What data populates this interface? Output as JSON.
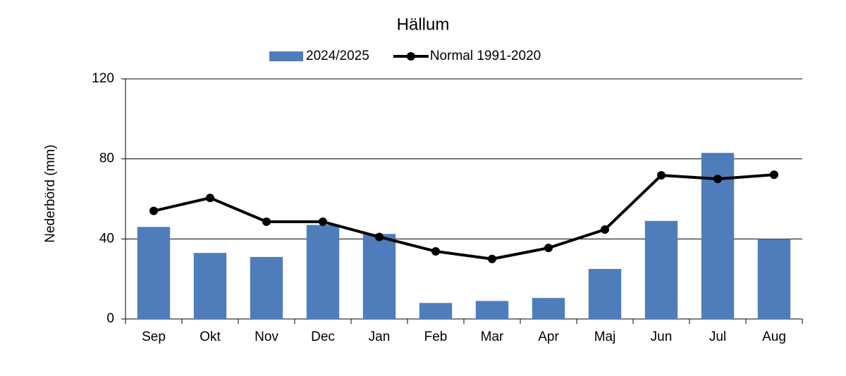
{
  "chart_data": {
    "type": "bar",
    "title": "Hällum",
    "y_label": "Nederbörd (mm)",
    "categories": [
      "Sep",
      "Okt",
      "Nov",
      "Dec",
      "Jan",
      "Feb",
      "Mar",
      "Apr",
      "Maj",
      "Jun",
      "Jul",
      "Aug"
    ],
    "series": [
      {
        "name": "2024/2025",
        "type": "bar",
        "color": "#4f7dbc",
        "values": [
          46,
          33,
          31,
          47,
          42.5,
          8,
          9,
          10.5,
          25,
          49,
          83,
          40
        ]
      },
      {
        "name": "Normal 1991-2020",
        "type": "line",
        "color": "#000000",
        "values": [
          54,
          60.5,
          48.6,
          48.6,
          41,
          33.8,
          30,
          35.5,
          44.7,
          71.8,
          70,
          72.1
        ]
      }
    ],
    "ylim": [
      0,
      120
    ],
    "yticks": [
      0,
      40,
      80,
      120
    ],
    "grid": true,
    "legend": "top"
  }
}
